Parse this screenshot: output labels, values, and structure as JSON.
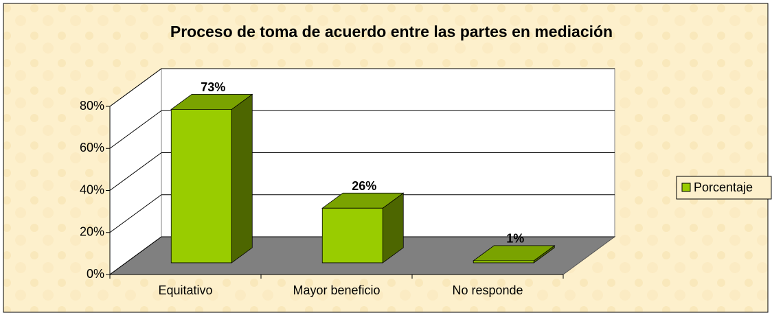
{
  "chart_data": {
    "type": "bar3d",
    "title": "Proceso de toma de acuerdo entre las partes en mediación",
    "categories": [
      "Equitativo",
      "Mayor beneficio",
      "No responde"
    ],
    "series": [
      {
        "name": "Porcentaje",
        "color": "#99cc00",
        "values": [
          73,
          26,
          1
        ],
        "value_labels": [
          "73%",
          "26%",
          "1%"
        ]
      }
    ],
    "ylim": [
      0,
      80
    ],
    "yticks": [
      {
        "value": 0,
        "label": "0%"
      },
      {
        "value": 20,
        "label": "20%"
      },
      {
        "value": 40,
        "label": "40%"
      },
      {
        "value": 60,
        "label": "60%"
      },
      {
        "value": 80,
        "label": "80%"
      }
    ],
    "grid": true,
    "legend": "right"
  }
}
